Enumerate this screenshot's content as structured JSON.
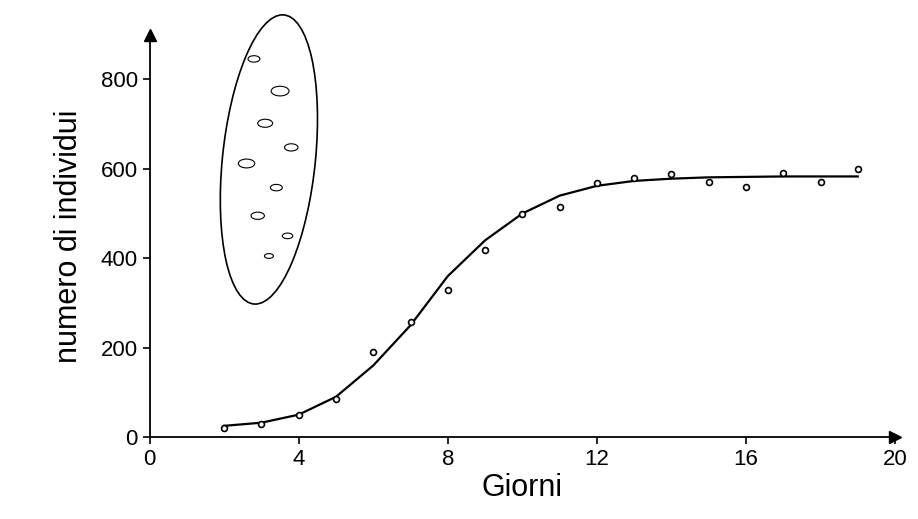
{
  "chart_data": {
    "type": "scatter",
    "x_label": "Giorni",
    "y_label": "numero di individui",
    "xlim": [
      0,
      20
    ],
    "xticks": [
      0,
      4,
      8,
      12,
      16,
      20
    ],
    "ylim": [
      0,
      900
    ],
    "yticks": [
      0,
      200,
      400,
      600,
      800
    ],
    "grid": false,
    "series": [
      {
        "type": "scatter",
        "color": "#000000",
        "marker": "o",
        "x": [
          2,
          3,
          4,
          5,
          6,
          7,
          8,
          9,
          10,
          11,
          12,
          13,
          14,
          15,
          16,
          17,
          18,
          19
        ],
        "values": [
          20,
          30,
          50,
          85,
          190,
          258,
          330,
          418,
          500,
          515,
          568,
          580,
          588,
          570,
          560,
          590,
          570,
          600
        ]
      },
      {
        "type": "line",
        "color": "#000000",
        "line_style": "solid",
        "x": [
          2,
          3,
          4,
          5,
          6,
          7,
          7.5,
          8,
          9,
          10,
          11,
          12,
          13,
          14,
          15,
          16,
          17,
          18,
          19
        ],
        "values": [
          25,
          32,
          50,
          90,
          160,
          250,
          305,
          360,
          440,
          500,
          540,
          562,
          573,
          578,
          581,
          582,
          583,
          583,
          583
        ]
      }
    ]
  }
}
